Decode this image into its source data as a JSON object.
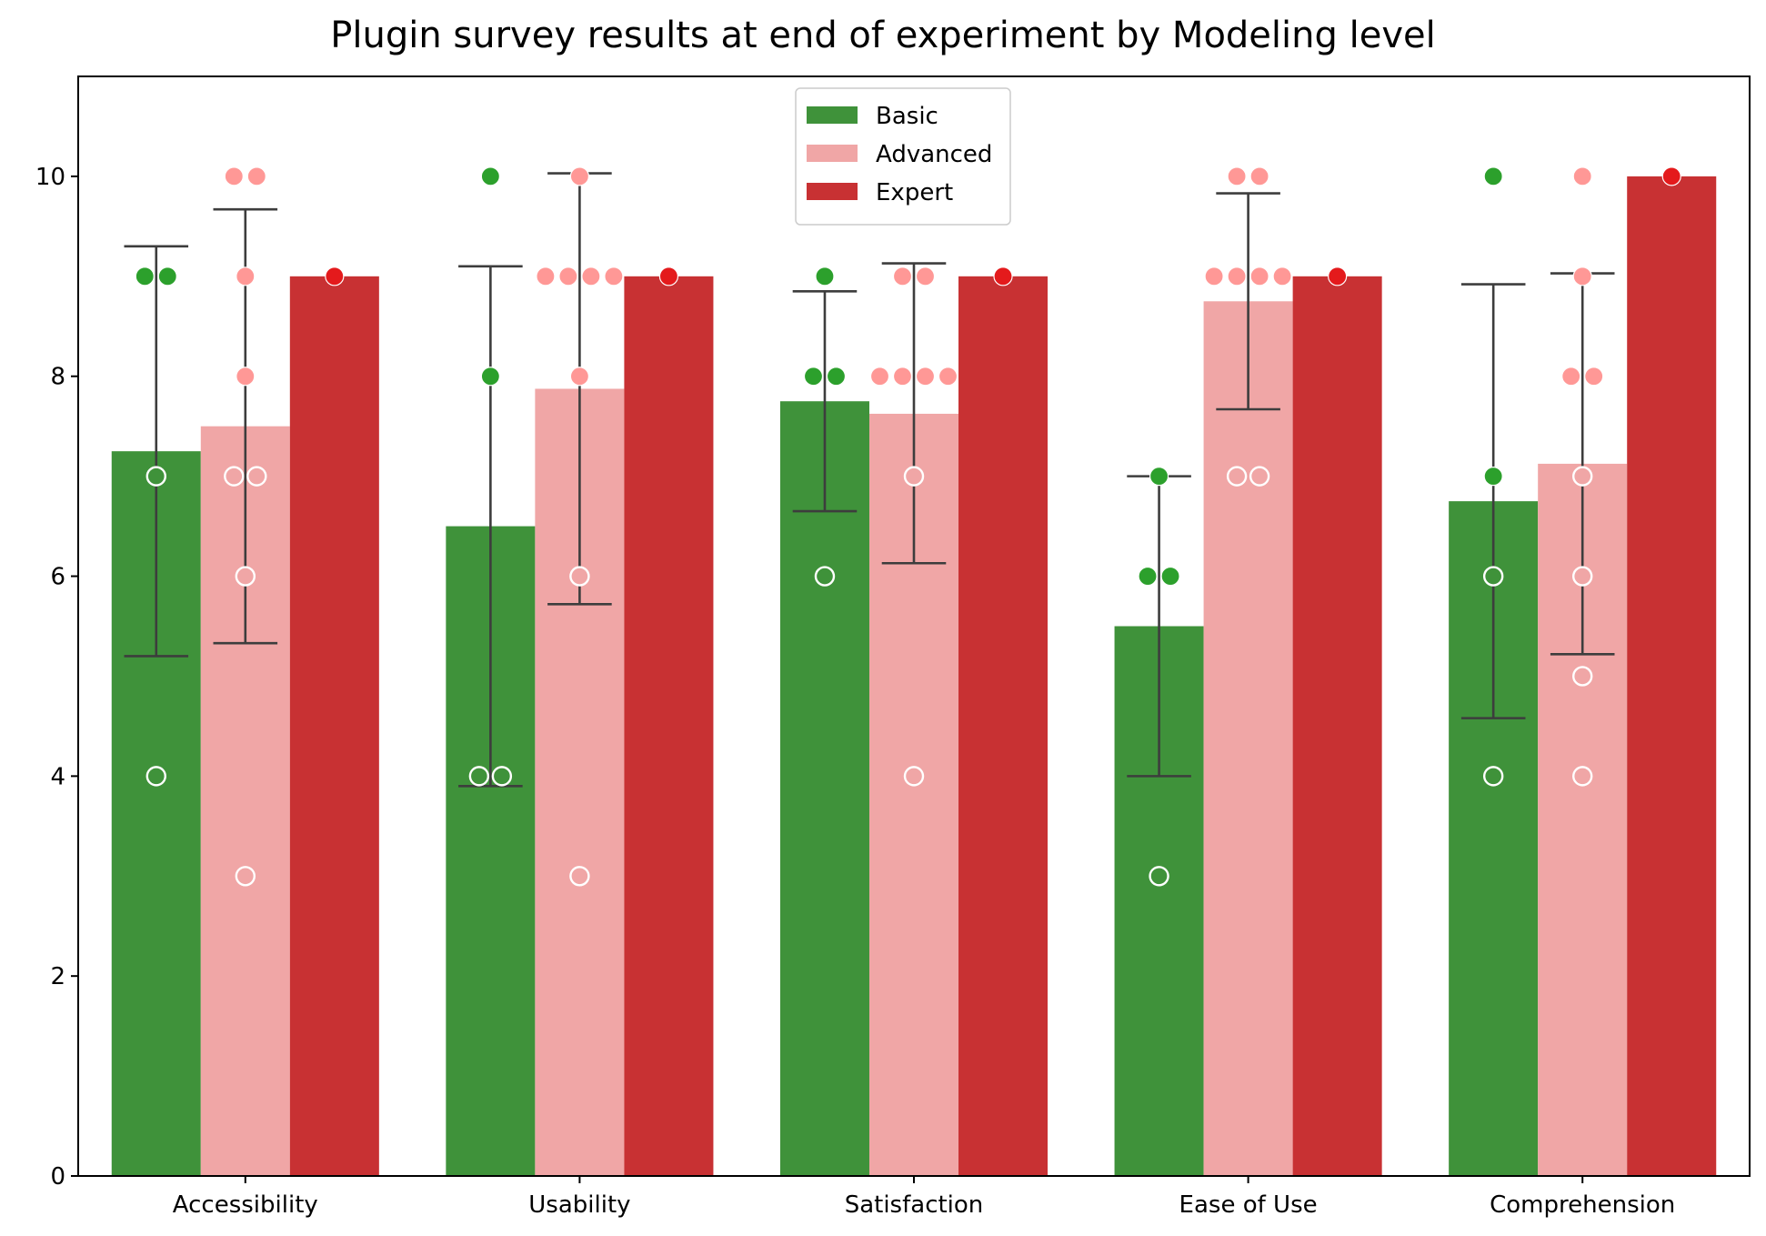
{
  "chart_data": {
    "type": "bar",
    "title": "Plugin survey results at end of experiment by Modeling level",
    "xlabel": "",
    "ylabel": "",
    "categories": [
      "Accessibility",
      "Usability",
      "Satisfaction",
      "Ease of Use",
      "Comprehension"
    ],
    "ylim": [
      0,
      11
    ],
    "yticks": [
      0,
      2,
      4,
      6,
      8,
      10
    ],
    "grid": false,
    "legend_position": "top-center",
    "series": [
      {
        "name": "Basic",
        "color": "#3f923a",
        "point_color": "#2ca02c",
        "values": [
          7.25,
          6.5,
          7.75,
          5.5,
          6.75
        ],
        "error": [
          [
            5.2,
            9.3
          ],
          [
            3.9,
            9.1
          ],
          [
            6.65,
            8.85
          ],
          [
            4.0,
            7.0
          ],
          [
            4.58,
            8.92
          ]
        ],
        "points": [
          [
            9,
            9,
            7,
            4
          ],
          [
            10,
            8,
            4,
            4
          ],
          [
            9,
            8,
            8,
            6
          ],
          [
            7,
            6,
            6,
            3
          ],
          [
            10,
            7,
            6,
            4
          ]
        ]
      },
      {
        "name": "Advanced",
        "color": "#f0a6a6",
        "point_color": "#ff9896",
        "values": [
          7.5,
          7.875,
          7.625,
          8.75,
          7.125
        ],
        "error": [
          [
            5.33,
            9.67
          ],
          [
            5.72,
            10.03
          ],
          [
            6.13,
            9.13
          ],
          [
            7.67,
            9.83
          ],
          [
            5.22,
            9.03
          ]
        ],
        "points": [
          [
            10,
            10,
            9,
            8,
            7,
            7,
            6,
            3
          ],
          [
            10,
            9,
            9,
            9,
            9,
            8,
            6,
            3
          ],
          [
            9,
            9,
            8,
            8,
            8,
            8,
            7,
            4
          ],
          [
            10,
            10,
            9,
            9,
            9,
            9,
            7,
            7
          ],
          [
            10,
            9,
            8,
            8,
            7,
            6,
            5,
            4
          ]
        ]
      },
      {
        "name": "Expert",
        "color": "#c83133",
        "point_color": "#e41a1c",
        "values": [
          9,
          9,
          9,
          9,
          10
        ],
        "error": [],
        "points": [
          [
            9
          ],
          [
            9
          ],
          [
            9
          ],
          [
            9
          ],
          [
            10
          ]
        ]
      }
    ]
  }
}
